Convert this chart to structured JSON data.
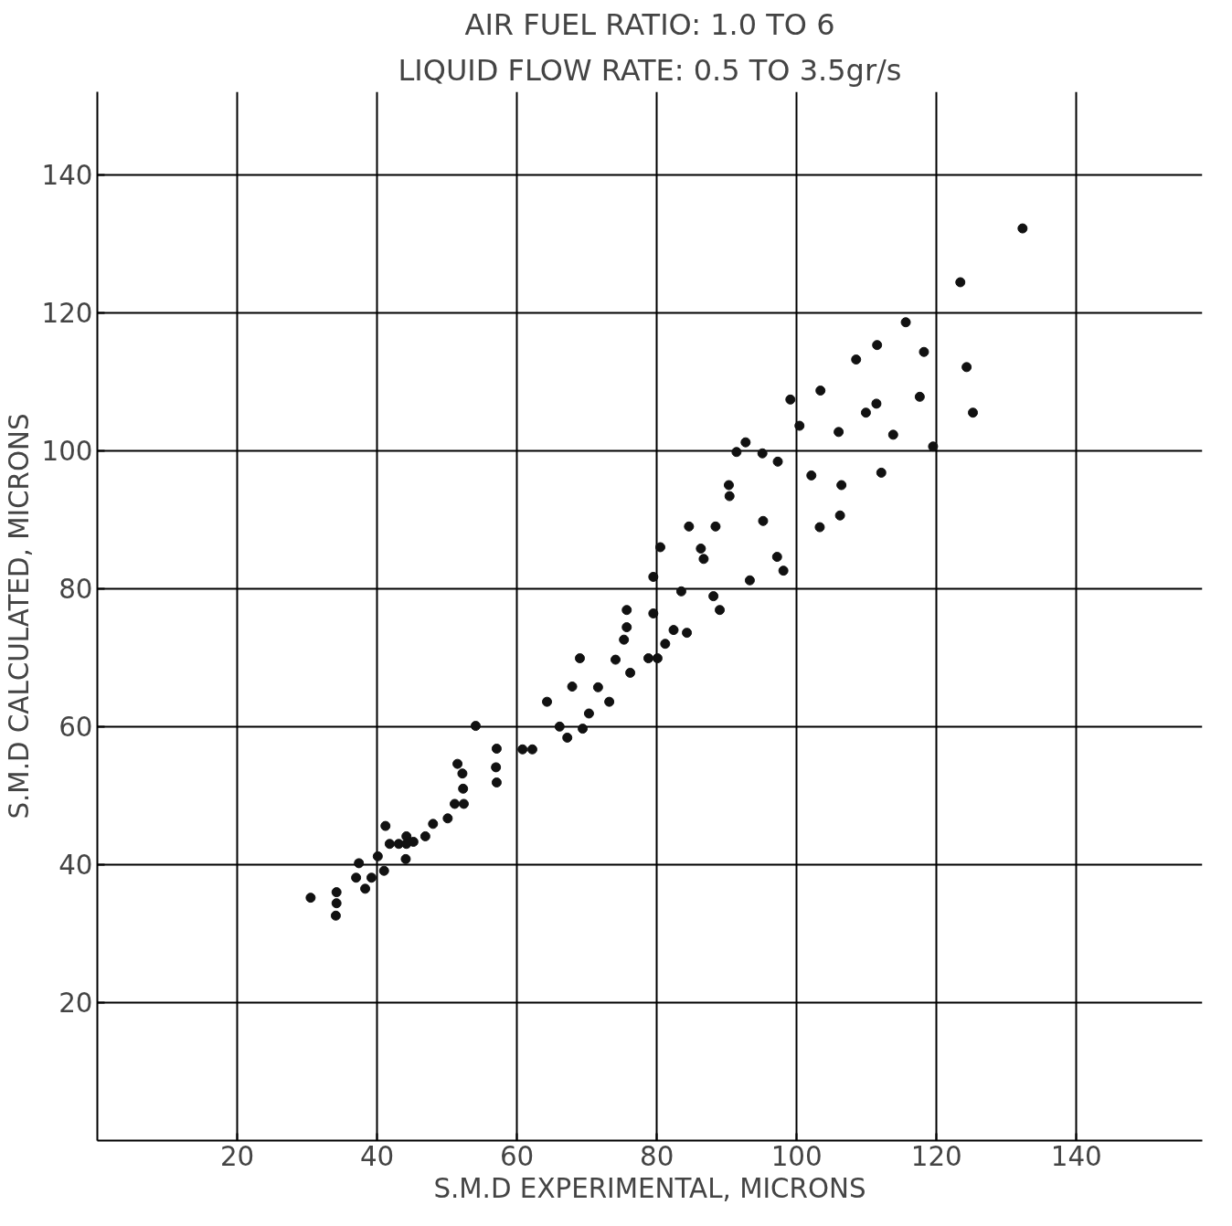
{
  "chart_data": {
    "type": "scatter",
    "title": "AIR FUEL RATIO: 1.0 TO 6",
    "subtitle": "LIQUID FLOW RATE: 0.5 TO 3.5gr/s",
    "xlabel": "S.M.D EXPERIMENTAL, MICRONS",
    "ylabel": "S.M.D CALCULATED, MICRONS",
    "xlim": [
      0,
      158
    ],
    "ylim": [
      0,
      152
    ],
    "xticks": [
      20,
      40,
      60,
      80,
      100,
      120,
      140
    ],
    "yticks": [
      20,
      40,
      60,
      80,
      100,
      120,
      140
    ],
    "grid": true,
    "marker": "circle",
    "series": [
      {
        "color": "#111111",
        "x": [
          30.5,
          34.2,
          34.2,
          34.1,
          37.0,
          37.4,
          38.3,
          39.2,
          40.1,
          41.0,
          41.2,
          41.8,
          43.1,
          44.2,
          44.2,
          44.1,
          45.2,
          46.9,
          48.0,
          50.1,
          51.1,
          52.4,
          51.5,
          52.2,
          52.3,
          54.1,
          57.1,
          57.0,
          57.1,
          60.8,
          62.2,
          64.3,
          66.1,
          67.2,
          67.9,
          69.0,
          69.4,
          70.3,
          71.6,
          73.2,
          74.1,
          75.3,
          75.7,
          75.7,
          76.2,
          78.8,
          79.5,
          79.5,
          80.1,
          80.5,
          81.2,
          82.4,
          83.5,
          84.3,
          84.6,
          86.3,
          86.7,
          88.1,
          88.4,
          89.0,
          90.3,
          90.4,
          91.4,
          92.7,
          93.3,
          95.1,
          95.2,
          97.2,
          97.3,
          98.1,
          99.1,
          100.4,
          102.1,
          103.3,
          103.4,
          106.0,
          106.4,
          106.2,
          108.5,
          109.9,
          111.4,
          111.5,
          112.1,
          113.8,
          115.6,
          117.6,
          118.2,
          119.5,
          123.4,
          124.3,
          125.2,
          132.3
        ],
        "values": [
          35.2,
          36.0,
          34.4,
          32.6,
          38.1,
          40.2,
          36.5,
          38.1,
          41.2,
          39.1,
          45.6,
          43.0,
          43.0,
          44.1,
          43.0,
          40.8,
          43.3,
          44.1,
          45.9,
          46.7,
          48.8,
          48.8,
          54.6,
          53.2,
          51.0,
          60.1,
          56.8,
          54.1,
          51.9,
          56.7,
          56.7,
          63.6,
          60.0,
          58.4,
          65.8,
          69.9,
          59.7,
          61.9,
          65.7,
          63.6,
          69.7,
          72.6,
          74.4,
          76.9,
          67.8,
          69.9,
          76.4,
          81.7,
          69.9,
          86.0,
          72.0,
          74.0,
          79.6,
          73.6,
          89.0,
          85.8,
          84.3,
          78.9,
          89.0,
          76.9,
          95.0,
          93.4,
          99.8,
          101.2,
          81.2,
          99.6,
          89.8,
          84.6,
          98.4,
          82.6,
          107.4,
          103.6,
          96.4,
          88.9,
          108.7,
          102.7,
          95.0,
          90.6,
          113.2,
          105.5,
          106.8,
          115.3,
          96.8,
          102.3,
          118.6,
          107.8,
          114.3,
          100.6,
          124.4,
          112.1,
          105.5,
          132.2
        ]
      }
    ]
  }
}
